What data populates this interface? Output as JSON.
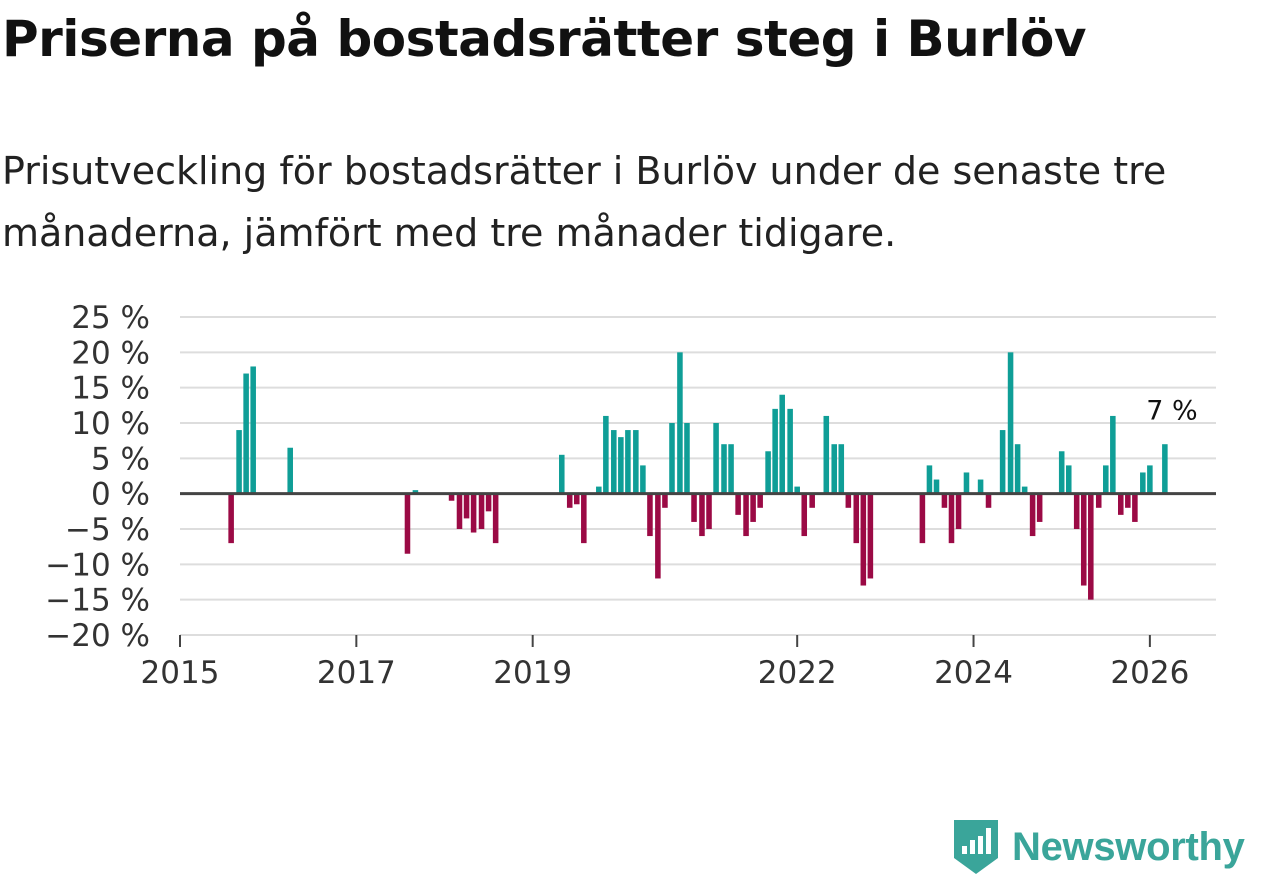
{
  "title": "Priserna på bostadsrätter steg i Burlöv",
  "subtitle": "Prisutveckling för bostadsrätter i Burlöv under de senaste tre månaderna, jämfört med tre månader tidigare.",
  "brand": {
    "name": "Newsworthy",
    "color": "#3aa59a"
  },
  "colors": {
    "positive": "#0f9e97",
    "negative": "#9b0a45",
    "grid": "#dddddd",
    "axis": "#444444"
  },
  "chart_data": {
    "type": "bar",
    "ylim": [
      -20,
      25
    ],
    "yticks": [
      25,
      20,
      15,
      10,
      5,
      0,
      -5,
      -10,
      -15,
      -20
    ],
    "ytick_labels": [
      "25 %",
      "20 %",
      "15 %",
      "10 %",
      "5 %",
      "0 %",
      "−5 %",
      "−10 %",
      "−15 %",
      "−20 %"
    ],
    "xlim": [
      2015.0,
      2026.75
    ],
    "xticks": [
      2015,
      2017,
      2019,
      2022,
      2024,
      2026
    ],
    "xtick_labels": [
      "2015",
      "2017",
      "2019",
      "2022",
      "2024",
      "2026"
    ],
    "annotation": {
      "text": "7 %",
      "x": 2026.25
    },
    "values": [
      {
        "x": 2015.58,
        "y": -7
      },
      {
        "x": 2015.67,
        "y": 9
      },
      {
        "x": 2015.75,
        "y": 17
      },
      {
        "x": 2015.83,
        "y": 18
      },
      {
        "x": 2016.25,
        "y": 6.5
      },
      {
        "x": 2017.58,
        "y": -8.5
      },
      {
        "x": 2017.67,
        "y": 0.5
      },
      {
        "x": 2018.08,
        "y": -1
      },
      {
        "x": 2018.17,
        "y": -5
      },
      {
        "x": 2018.25,
        "y": -3.5
      },
      {
        "x": 2018.33,
        "y": -5.5
      },
      {
        "x": 2018.42,
        "y": -5
      },
      {
        "x": 2018.5,
        "y": -2.5
      },
      {
        "x": 2018.58,
        "y": -7
      },
      {
        "x": 2019.33,
        "y": 5.5
      },
      {
        "x": 2019.42,
        "y": -2
      },
      {
        "x": 2019.5,
        "y": -1.5
      },
      {
        "x": 2019.58,
        "y": -7
      },
      {
        "x": 2019.75,
        "y": 1
      },
      {
        "x": 2019.83,
        "y": 11
      },
      {
        "x": 2019.92,
        "y": 9
      },
      {
        "x": 2020.0,
        "y": 8
      },
      {
        "x": 2020.08,
        "y": 9
      },
      {
        "x": 2020.17,
        "y": 9
      },
      {
        "x": 2020.25,
        "y": 4
      },
      {
        "x": 2020.33,
        "y": -6
      },
      {
        "x": 2020.42,
        "y": -12
      },
      {
        "x": 2020.5,
        "y": -2
      },
      {
        "x": 2020.58,
        "y": 10
      },
      {
        "x": 2020.67,
        "y": 20
      },
      {
        "x": 2020.75,
        "y": 10
      },
      {
        "x": 2020.83,
        "y": -4
      },
      {
        "x": 2020.92,
        "y": -6
      },
      {
        "x": 2021.0,
        "y": -5
      },
      {
        "x": 2021.08,
        "y": 10
      },
      {
        "x": 2021.17,
        "y": 7
      },
      {
        "x": 2021.25,
        "y": 7
      },
      {
        "x": 2021.33,
        "y": -3
      },
      {
        "x": 2021.42,
        "y": -6
      },
      {
        "x": 2021.5,
        "y": -4
      },
      {
        "x": 2021.58,
        "y": -2
      },
      {
        "x": 2021.67,
        "y": 6
      },
      {
        "x": 2021.75,
        "y": 12
      },
      {
        "x": 2021.83,
        "y": 14
      },
      {
        "x": 2021.92,
        "y": 12
      },
      {
        "x": 2022.0,
        "y": 1
      },
      {
        "x": 2022.08,
        "y": -6
      },
      {
        "x": 2022.17,
        "y": -2
      },
      {
        "x": 2022.33,
        "y": 11
      },
      {
        "x": 2022.42,
        "y": 7
      },
      {
        "x": 2022.5,
        "y": 7
      },
      {
        "x": 2022.58,
        "y": -2
      },
      {
        "x": 2022.67,
        "y": -7
      },
      {
        "x": 2022.75,
        "y": -13
      },
      {
        "x": 2022.83,
        "y": -12
      },
      {
        "x": 2023.42,
        "y": -7
      },
      {
        "x": 2023.5,
        "y": 4
      },
      {
        "x": 2023.58,
        "y": 2
      },
      {
        "x": 2023.67,
        "y": -2
      },
      {
        "x": 2023.75,
        "y": -7
      },
      {
        "x": 2023.83,
        "y": -5
      },
      {
        "x": 2023.92,
        "y": 3
      },
      {
        "x": 2024.08,
        "y": 2
      },
      {
        "x": 2024.17,
        "y": -2
      },
      {
        "x": 2024.33,
        "y": 9
      },
      {
        "x": 2024.42,
        "y": 20
      },
      {
        "x": 2024.5,
        "y": 7
      },
      {
        "x": 2024.58,
        "y": 1
      },
      {
        "x": 2024.67,
        "y": -6
      },
      {
        "x": 2024.75,
        "y": -4
      },
      {
        "x": 2025.0,
        "y": 6
      },
      {
        "x": 2025.08,
        "y": 4
      },
      {
        "x": 2025.17,
        "y": -5
      },
      {
        "x": 2025.25,
        "y": -13
      },
      {
        "x": 2025.33,
        "y": -15
      },
      {
        "x": 2025.42,
        "y": -2
      },
      {
        "x": 2025.5,
        "y": 4
      },
      {
        "x": 2025.58,
        "y": 11
      },
      {
        "x": 2025.67,
        "y": -3
      },
      {
        "x": 2025.75,
        "y": -2
      },
      {
        "x": 2025.83,
        "y": -4
      },
      {
        "x": 2025.92,
        "y": 3
      },
      {
        "x": 2026.0,
        "y": 4
      },
      {
        "x": 2026.17,
        "y": 7
      }
    ]
  }
}
